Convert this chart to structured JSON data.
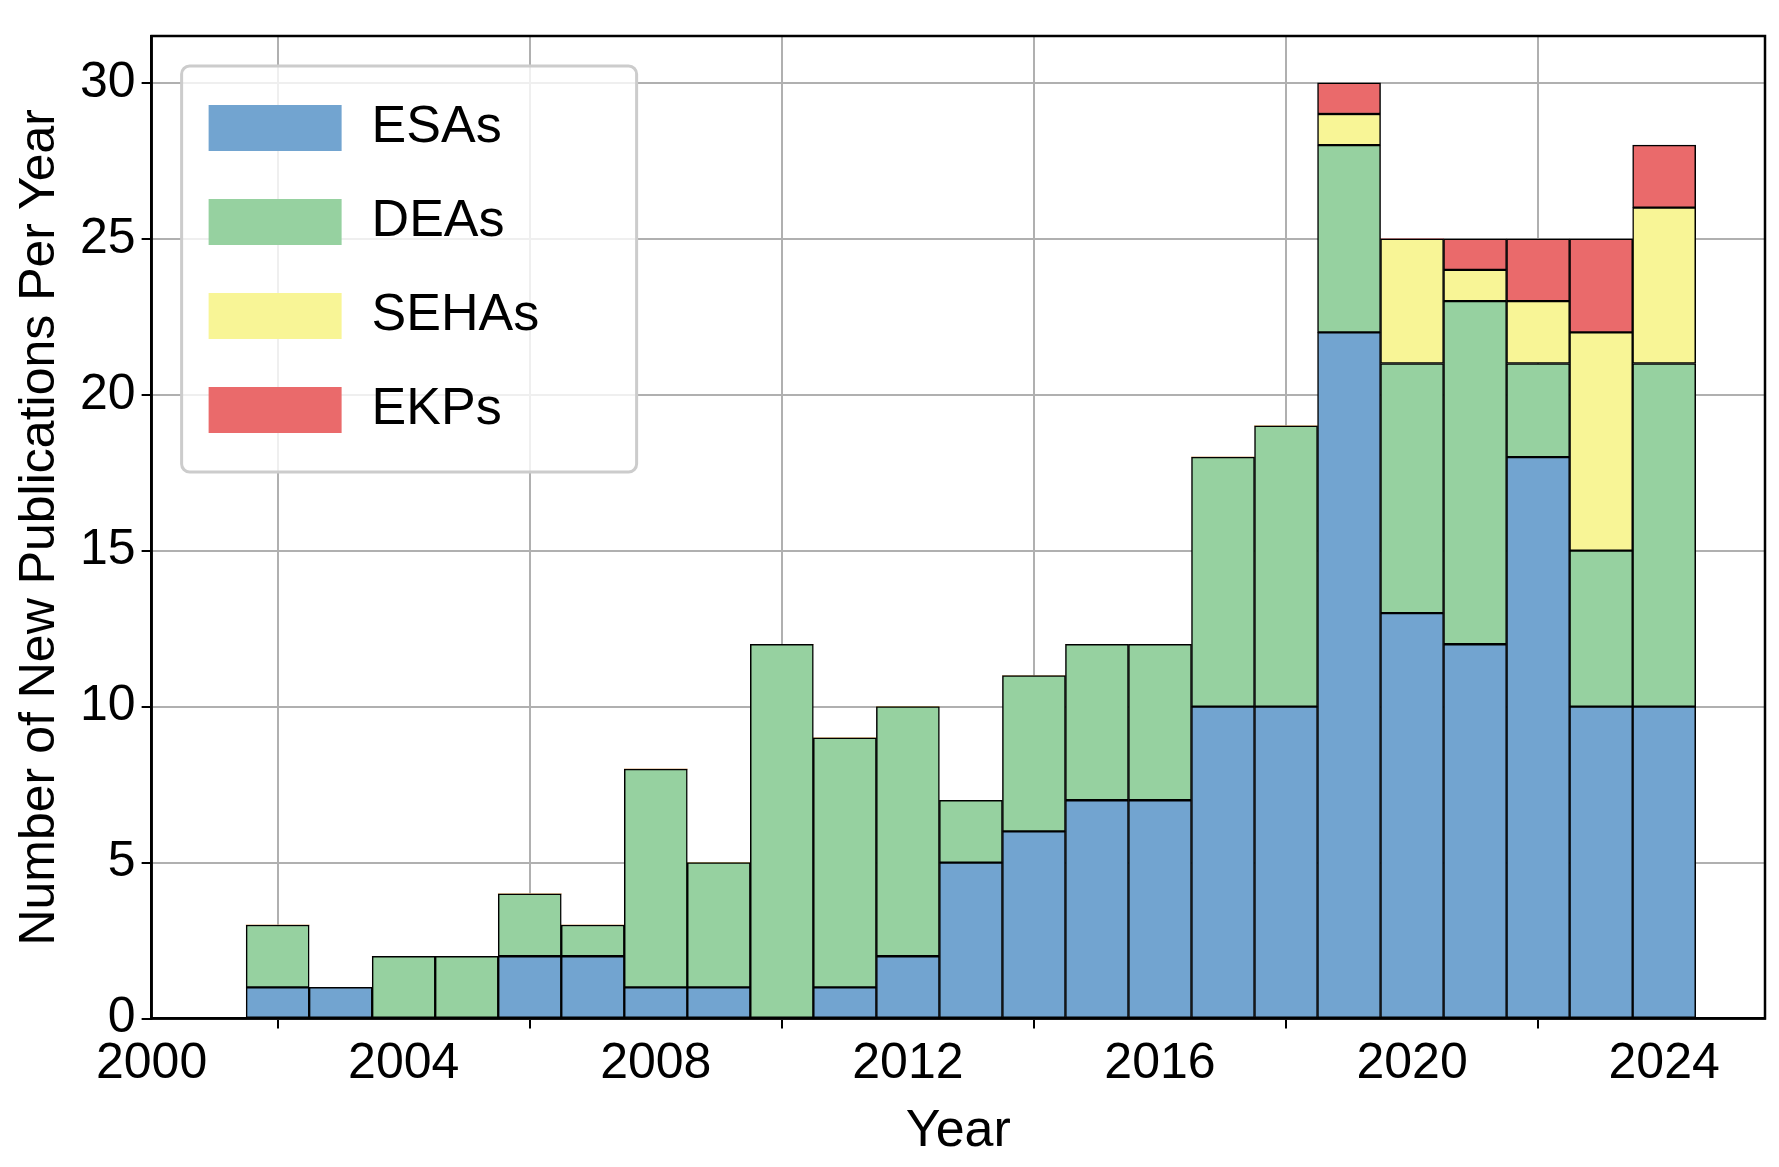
{
  "chart_data": {
    "type": "bar",
    "xlabel": "Year",
    "ylabel": "Number of New Publications Per Year",
    "x": [
      2002,
      2003,
      2004,
      2005,
      2006,
      2007,
      2008,
      2009,
      2010,
      2011,
      2012,
      2013,
      2014,
      2015,
      2016,
      2017,
      2018,
      2019,
      2020,
      2021,
      2022,
      2023,
      2024
    ],
    "stacked": true,
    "series": [
      {
        "name": "ESAs",
        "color": "#72a4d0",
        "values": [
          1,
          1,
          0,
          0,
          2,
          2,
          1,
          1,
          0,
          1,
          2,
          5,
          6,
          7,
          7,
          10,
          10,
          22,
          13,
          12,
          18,
          10,
          10
        ]
      },
      {
        "name": "DEAs",
        "color": "#96d1a0",
        "values": [
          2,
          0,
          2,
          2,
          2,
          1,
          7,
          4,
          12,
          8,
          8,
          2,
          5,
          5,
          5,
          8,
          9,
          6,
          8,
          11,
          3,
          5,
          11
        ]
      },
      {
        "name": "SEHAs",
        "color": "#f8f596",
        "values": [
          0,
          0,
          0,
          0,
          0,
          0,
          0,
          0,
          0,
          0,
          0,
          0,
          0,
          0,
          0,
          0,
          0,
          1,
          4,
          1,
          2,
          7,
          5
        ]
      },
      {
        "name": "EKPs",
        "color": "#ea6a6b",
        "values": [
          0,
          0,
          0,
          0,
          0,
          0,
          0,
          0,
          0,
          0,
          0,
          0,
          0,
          0,
          0,
          0,
          0,
          1,
          0,
          1,
          2,
          3,
          2
        ]
      }
    ],
    "xlim": [
      2000,
      2025.6
    ],
    "xticks": [
      2000,
      2004,
      2008,
      2012,
      2016,
      2020,
      2024
    ],
    "ylim": [
      0,
      31.5
    ],
    "yticks": [
      0,
      5,
      10,
      15,
      20,
      25,
      30
    ],
    "grid": true,
    "legend": "top left"
  }
}
